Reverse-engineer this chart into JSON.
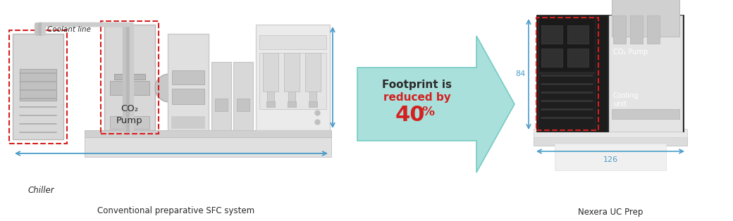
{
  "bg_color": "#ffffff",
  "title_left": "Conventional preparative SFC system",
  "title_right": "Nexera UC Prep",
  "footprint_line1": "Footprint is",
  "footprint_line2": "reduced by",
  "footprint_pct": "40",
  "footprint_pct_suffix": "%",
  "red_dash_color": "#d42020",
  "blue_arrow_color": "#4a9cc8",
  "coolant_line_text": "Coolant line",
  "chiller_text": "Chiller",
  "co2_pump_text_left": "CO₂\nPump",
  "co2_pump_text_right": "CO₂ Pump",
  "cooling_unit_text": "Cooling\nunit",
  "dim_84": "84",
  "dim_126": "126",
  "text_black": "#2a2a2a",
  "text_red": "#d42020",
  "arrow_face": "#82d8d0",
  "arrow_edge": "#5bbfb8",
  "gray_body": "#d6d6d6",
  "gray_med": "#c0c0c0",
  "gray_dark": "#a8a8a8",
  "gray_light": "#e8e8e8",
  "bench_top": "#d0d0d0",
  "bench_body": "#e0e0e0"
}
